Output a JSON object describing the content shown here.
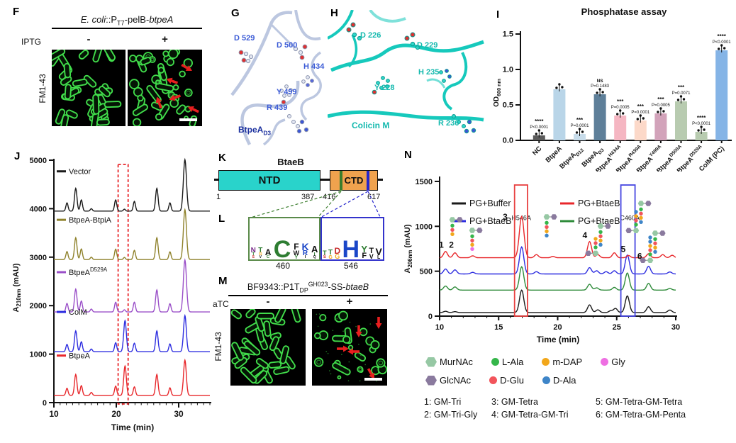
{
  "panelF": {
    "label": "F",
    "title": {
      "e1": "E. coli",
      "e2": "::P",
      "sub": "T7",
      "e3": "-pelB-",
      "e4": "btpeA"
    },
    "inducer": "IPTG",
    "minus": "-",
    "plus": "+",
    "stain": "FM1-43"
  },
  "panelG": {
    "label": "G",
    "residues": [
      "D 529",
      "D 500",
      "H 434",
      "Y 499",
      "R 439"
    ],
    "molecule": {
      "base": "BtpeA",
      "sub": "D3"
    },
    "label_color": "#3b5bd6"
  },
  "panelH": {
    "label": "H",
    "residues": [
      "D 226",
      "D 229",
      "Y 228",
      "H 235",
      "R 236"
    ],
    "molecule": "Colicin M",
    "label_color": "#13b9ae"
  },
  "panelI": {
    "label": "I",
    "title": "Phosphatase assay",
    "ylabel": {
      "base": "OD",
      "sub": "600 nm"
    },
    "chart_data": {
      "type": "bar",
      "ylim": [
        0,
        1.5
      ],
      "yticks": [
        "0.0",
        "0.5",
        "1.0",
        "1.5"
      ],
      "bars": [
        {
          "label": {
            "base": "NC"
          },
          "value": 0.07,
          "color": "#5b5b5b",
          "stars": "****",
          "p": "P<0.0001"
        },
        {
          "label": {
            "base": "BtpeA"
          },
          "value": 0.72,
          "color": "#b9d5e8"
        },
        {
          "label": {
            "base": "BtpeA",
            "sub": "D12"
          },
          "value": 0.09,
          "color": "#c8dcea",
          "stars": "***",
          "p": "P=0.0001"
        },
        {
          "label": {
            "base": "BtpeA",
            "sub": "D3"
          },
          "value": 0.65,
          "color": "#5e7f99",
          "stars": "NS",
          "p": "P=0.1483"
        },
        {
          "label": {
            "base": "BtpeA",
            "sup": "H434A"
          },
          "value": 0.35,
          "color": "#f5b6c2",
          "stars": "***",
          "p": "P=0.0005"
        },
        {
          "label": {
            "base": "BtpeA",
            "sup": "R439A"
          },
          "value": 0.28,
          "color": "#fcd9c9",
          "stars": "***",
          "p": "P=0.0001"
        },
        {
          "label": {
            "base": "BtpeA",
            "sup": "Y499A"
          },
          "value": 0.38,
          "color": "#d2a3ba",
          "stars": "***",
          "p": "P=0.0005"
        },
        {
          "label": {
            "base": "BtpeA",
            "sup": "D500A"
          },
          "value": 0.55,
          "color": "#b8cbb0",
          "stars": "***",
          "p": "P=0.0071"
        },
        {
          "label": {
            "base": "BtpeA",
            "sup": "D529A"
          },
          "value": 0.12,
          "color": "#b8cbb0",
          "stars": "****",
          "p": "P<0.0001"
        },
        {
          "label": {
            "base": "ColM (PC)"
          },
          "value": 1.27,
          "color": "#85b4e6",
          "stars": "****",
          "p": "P<0.0001"
        }
      ]
    }
  },
  "panelJ": {
    "label": "J",
    "ylabel": {
      "base": "A",
      "sub": "210nm",
      "rest": " (mAU)"
    },
    "xlabel": "Time (min)",
    "chart_data": {
      "type": "line",
      "x_range": [
        10,
        35
      ],
      "y_range": [
        0,
        5000
      ],
      "xticks": [
        10,
        20,
        30
      ],
      "yticks": [
        0,
        1000,
        2000,
        3000,
        4000,
        5000
      ],
      "highlight_box": {
        "x1": 20.3,
        "x2": 21.9,
        "color": "#e8262a",
        "style": "dashed"
      },
      "traces": [
        {
          "name": {
            "base": "Vector"
          },
          "color": "#1a1a1a",
          "baseline": 3950,
          "peaks": [
            [
              12.1,
              170
            ],
            [
              13.5,
              470
            ],
            [
              14.4,
              230
            ],
            [
              16,
              50
            ],
            [
              19.9,
              230
            ],
            [
              21.3,
              40
            ],
            [
              22.9,
              200
            ],
            [
              26.5,
              470
            ],
            [
              28.6,
              170
            ],
            [
              31,
              1060
            ]
          ]
        },
        {
          "name": {
            "base": "BtpeA-BtpiA"
          },
          "color": "#8f822c",
          "baseline": 2950,
          "peaks": [
            [
              12.1,
              165
            ],
            [
              13.5,
              450
            ],
            [
              14.4,
              220
            ],
            [
              16,
              50
            ],
            [
              19.9,
              215
            ],
            [
              21.3,
              45
            ],
            [
              22.9,
              190
            ],
            [
              26.5,
              450
            ],
            [
              28.6,
              160
            ],
            [
              31,
              1030
            ]
          ]
        },
        {
          "name": {
            "base": "BtpeA",
            "sup": "D529A"
          },
          "color": "#9a4fc8",
          "baseline": 1870,
          "peaks": [
            [
              12.1,
              175
            ],
            [
              13.5,
              470
            ],
            [
              14.4,
              225
            ],
            [
              16,
              60
            ],
            [
              19.9,
              200
            ],
            [
              21.3,
              45
            ],
            [
              22.9,
              200
            ],
            [
              26.5,
              455
            ],
            [
              28.6,
              170
            ],
            [
              31,
              1070
            ]
          ]
        },
        {
          "name": {
            "base": "ColM"
          },
          "color": "#2d2de0",
          "baseline": 1050,
          "peaks": [
            [
              12.1,
              150
            ],
            [
              13.5,
              430
            ],
            [
              14.4,
              205
            ],
            [
              16,
              55
            ],
            [
              19.9,
              185
            ],
            [
              21.4,
              640
            ],
            [
              22.9,
              175
            ],
            [
              26.5,
              430
            ],
            [
              28.6,
              160
            ],
            [
              31,
              745
            ]
          ]
        },
        {
          "name": {
            "base": "BtpeA"
          },
          "color": "#e8272b",
          "baseline": 150,
          "peaks": [
            [
              12.1,
              145
            ],
            [
              13.5,
              430
            ],
            [
              14.4,
              200
            ],
            [
              16,
              60
            ],
            [
              19.9,
              190
            ],
            [
              21.4,
              605
            ],
            [
              22.9,
              175
            ],
            [
              26.5,
              430
            ],
            [
              28.6,
              155
            ],
            [
              31,
              725
            ]
          ]
        }
      ]
    }
  },
  "panelK": {
    "label": "K",
    "title": "BtaeB",
    "ntd": "NTD",
    "ctd": "CTD",
    "start": "1",
    "end_ntd": "387",
    "start_ctd": "416",
    "end": "617",
    "ntd_color": "#29d3cb",
    "ctd_color": "#f0a24e",
    "site1_color": "#3a7d2c",
    "site2_color": "#2626cc"
  },
  "panelL": {
    "label": "L",
    "left_pos": "460",
    "right_pos": "546",
    "left_logo": [
      [
        [
          "N",
          "#7a2d8c",
          10
        ],
        [
          "T",
          "#2e7d32",
          6
        ],
        [
          "S",
          "#c62828",
          5
        ]
      ],
      [
        [
          "T",
          "#2e7d32",
          10
        ],
        [
          "G",
          "#f2a71b",
          6
        ],
        [
          "V",
          "#111111",
          5
        ]
      ],
      [
        [
          "A",
          "#111111",
          12
        ],
        [
          "C",
          "#2e7d32",
          6
        ]
      ],
      [
        [
          "C",
          "#2e7d32",
          34
        ]
      ],
      [
        [
          "F",
          "#111111",
          12
        ],
        [
          "W",
          "#111111",
          9
        ],
        [
          "Y",
          "#2e7d32",
          7
        ]
      ],
      [
        [
          "K",
          "#1a46c8",
          14
        ],
        [
          "R",
          "#1a46c8",
          10
        ],
        [
          "I",
          "#111111",
          6
        ]
      ],
      [
        [
          "A",
          "#111111",
          13
        ],
        [
          "I",
          "#2e7d32",
          7
        ],
        [
          "Q",
          "#111111",
          5
        ]
      ]
    ],
    "right_logo": [
      [
        [
          "T",
          "#2e7d32",
          9
        ],
        [
          "S",
          "#c62828",
          6
        ]
      ],
      [
        [
          "T",
          "#2e7d32",
          10
        ],
        [
          "G",
          "#f2a71b",
          7
        ]
      ],
      [
        [
          "D",
          "#c62828",
          12
        ],
        [
          "G",
          "#f2a71b",
          9
        ]
      ],
      [
        [
          "H",
          "#1a46c8",
          34
        ]
      ],
      [
        [
          "Y",
          "#2e7d32",
          13
        ],
        [
          "F",
          "#111111",
          11
        ]
      ],
      [
        [
          "T",
          "#111111",
          11
        ],
        [
          "V",
          "#111111",
          9
        ]
      ],
      [
        [
          "V",
          "#111111",
          14
        ],
        [
          "L",
          "#111111",
          7
        ]
      ]
    ]
  },
  "panelM": {
    "label": "M",
    "title": {
      "e1": "BF9343::P1T",
      "sub": "DP",
      "sup": "GH023",
      "e2": "-SS-",
      "e3": "btaeB"
    },
    "inducer": "aTC",
    "minus": "-",
    "plus": "+",
    "stain": "FM1-43"
  },
  "panelN": {
    "label": "N",
    "ylabel": {
      "base": "A",
      "sub": "206nm",
      "rest": " (mAU)"
    },
    "xlabel": "Time (min)",
    "chart_data": {
      "type": "line",
      "x_range": [
        10,
        30
      ],
      "y_range": [
        0,
        1500
      ],
      "xticks": [
        10,
        15,
        20,
        25,
        30
      ],
      "yticks": [
        0,
        500,
        1000,
        1500
      ],
      "boxes": [
        {
          "x1": 16.35,
          "x2": 17.45,
          "ymax": 1460,
          "color": "#e84040"
        },
        {
          "x1": 25.35,
          "x2": 26.55,
          "ymax": 1460,
          "color": "#4646e0"
        }
      ],
      "legend": [
        {
          "name": {
            "base": "PG+Buffer"
          },
          "color": "#1a1a1a"
        },
        {
          "name": {
            "base": "PG+BtaeB",
            "sup": "H546A"
          },
          "color": "#2d2de0"
        },
        {
          "name": {
            "base": "PG+BtaeB"
          },
          "color": "#e8272b"
        },
        {
          "name": {
            "base": "PG+BtaeB",
            "sup": "C460A"
          },
          "color": "#2e8b3a"
        }
      ],
      "traces": [
        {
          "name": "PG+Buffer",
          "color": "#1a1a1a",
          "baseline": 40,
          "peaks": [
            [
              10.5,
              14
            ],
            [
              11.3,
              10
            ],
            [
              16.95,
              250
            ],
            [
              22.7,
              85
            ],
            [
              23.4,
              30
            ],
            [
              24.5,
              20
            ],
            [
              24.9,
              45
            ],
            [
              25.9,
              185
            ],
            [
              27.7,
              65
            ],
            [
              29.5,
              28
            ]
          ]
        },
        {
          "name": "PG+BtaeB C460A",
          "color": "#2e8b3a",
          "baseline": 290,
          "peaks": [
            [
              10.5,
              45
            ],
            [
              11.3,
              35
            ],
            [
              16.95,
              260
            ],
            [
              22.7,
              65
            ],
            [
              23.3,
              25
            ],
            [
              24.8,
              30
            ],
            [
              25.9,
              190
            ],
            [
              27.7,
              75
            ],
            [
              29.5,
              18
            ]
          ]
        },
        {
          "name": "PG+BtaeB H546A",
          "color": "#2d2de0",
          "baseline": 470,
          "peaks": [
            [
              10.5,
              55
            ],
            [
              11.3,
              45
            ],
            [
              12.8,
              18
            ],
            [
              16.95,
              300
            ],
            [
              18.2,
              25
            ],
            [
              22.7,
              70
            ],
            [
              23.3,
              35
            ],
            [
              24.1,
              25
            ],
            [
              24.8,
              35
            ],
            [
              25.9,
              210
            ],
            [
              27.7,
              85
            ],
            [
              29.5,
              22
            ]
          ]
        },
        {
          "name": "PG+BtaeB",
          "color": "#e8272b",
          "baseline": 650,
          "peaks": [
            [
              10.5,
              70
            ],
            [
              11.3,
              55
            ],
            [
              12.8,
              22
            ],
            [
              16.95,
              460
            ],
            [
              18.2,
              35
            ],
            [
              19.6,
              15
            ],
            [
              22.7,
              180
            ],
            [
              23.4,
              35
            ],
            [
              24.8,
              55
            ],
            [
              26,
              25
            ],
            [
              27.7,
              45
            ],
            [
              28.9,
              35
            ],
            [
              29.7,
              28
            ]
          ]
        }
      ],
      "peak_labels": [
        {
          "n": "1",
          "t": 10.15,
          "v": 760
        },
        {
          "n": "2",
          "t": 11.0,
          "v": 760
        },
        {
          "n": "3",
          "t": 15.55,
          "v": 1075
        },
        {
          "n": "4",
          "t": 22.3,
          "v": 870
        },
        {
          "n": "5",
          "t": 25.55,
          "v": 715
        },
        {
          "n": "6",
          "t": 26.95,
          "v": 635
        }
      ],
      "structures": [
        {
          "id": "1",
          "name": "GM-Tri",
          "type": "mono",
          "chain": [
            "L-Ala",
            "D-Glu",
            "m-DAP"
          ]
        },
        {
          "id": "2",
          "name": "GM-Tri-Gly",
          "type": "mono",
          "chain": [
            "L-Ala",
            "D-Glu",
            "m-DAP",
            "Gly"
          ]
        },
        {
          "id": "3",
          "name": "GM-Tetra",
          "type": "mono",
          "chain": [
            "L-Ala",
            "D-Glu",
            "m-DAP",
            "D-Ala"
          ]
        },
        {
          "id": "4",
          "name": "GM-Tetra-GM-Tri",
          "type": "dimer",
          "chain": [
            "L-Ala",
            "D-Glu",
            "m-DAP",
            "D-Ala"
          ],
          "chain2": [
            "L-Ala",
            "D-Glu",
            "m-DAP"
          ]
        },
        {
          "id": "5",
          "name": "GM-Tetra-GM-Tetra",
          "type": "dimer",
          "chain": [
            "L-Ala",
            "D-Glu",
            "m-DAP",
            "D-Ala"
          ],
          "chain2": [
            "L-Ala",
            "D-Glu",
            "m-DAP",
            "D-Ala"
          ]
        },
        {
          "id": "6",
          "name": "GM-Tetra-GM-Penta",
          "type": "dimer",
          "chain": [
            "L-Ala",
            "D-Glu",
            "m-DAP",
            "D-Ala"
          ],
          "chain2": [
            "L-Ala",
            "D-Glu",
            "m-DAP",
            "D-Ala",
            "D-Ala"
          ]
        }
      ]
    },
    "residue_colors": {
      "MurNAc": "#96c8a4",
      "GlcNAc": "#8a7a9e",
      "L-Ala": "#35b64a",
      "D-Glu": "#f2545b",
      "m-DAP": "#f2a71b",
      "D-Ala": "#3e85c8",
      "Gly": "#ee6fe2"
    },
    "residue_legend": {
      "row1": [
        {
          "name": "MurNAc",
          "shape": "hexagon"
        },
        {
          "name": "L-Ala",
          "shape": "circle"
        },
        {
          "name": "m-DAP",
          "shape": "circle"
        },
        {
          "name": "Gly",
          "shape": "circle"
        }
      ],
      "row2": [
        {
          "name": "GlcNAc",
          "shape": "hexagon"
        },
        {
          "name": "D-Glu",
          "shape": "circle"
        },
        {
          "name": "D-Ala",
          "shape": "circle"
        }
      ]
    },
    "peak_key": {
      "row1": [
        "1: GM-Tri",
        "3: GM-Tetra",
        "5: GM-Tetra-GM-Tetra"
      ],
      "row2": [
        "2: GM-Tri-Gly",
        "4: GM-Tetra-GM-Tri",
        "6: GM-Tetra-GM-Penta"
      ]
    }
  }
}
